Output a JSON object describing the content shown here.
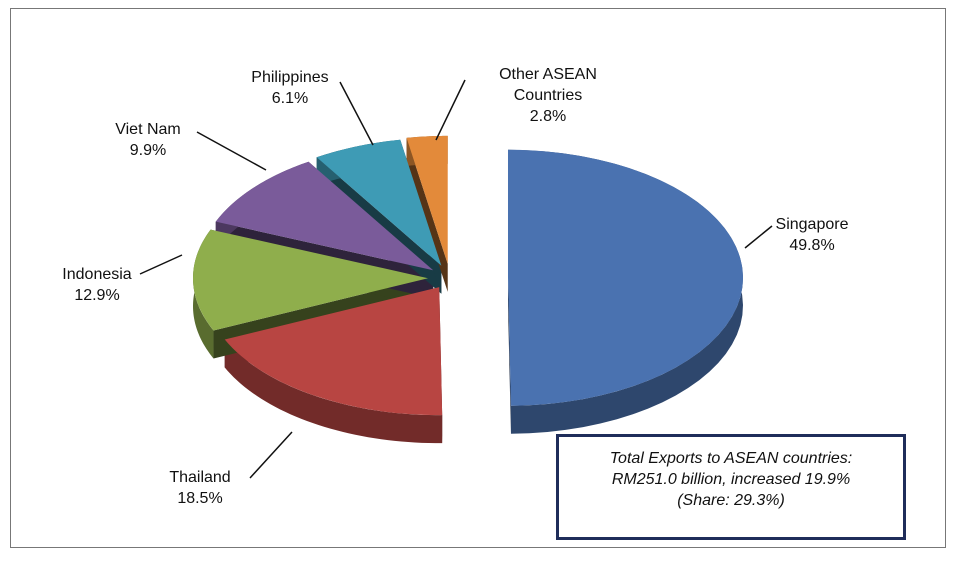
{
  "chart_data": {
    "type": "pie",
    "categories": [
      "Singapore",
      "Thailand",
      "Indonesia",
      "Viet Nam",
      "Philippines",
      "Other ASEAN Countries"
    ],
    "values": [
      49.8,
      18.5,
      12.9,
      9.9,
      6.1,
      2.8
    ],
    "value_labels": [
      "49.8%",
      "18.5%",
      "12.9%",
      "9.9%",
      "6.1%",
      "2.8%"
    ],
    "colors": [
      "#4a72b0",
      "#b84542",
      "#8fae4c",
      "#7a5b9a",
      "#3e9bb5",
      "#e38a3a"
    ],
    "annotation": [
      "Total Exports to ASEAN countries:",
      "RM251.0 billion, increased 19.9%",
      "(Share: 29.3%)"
    ]
  }
}
